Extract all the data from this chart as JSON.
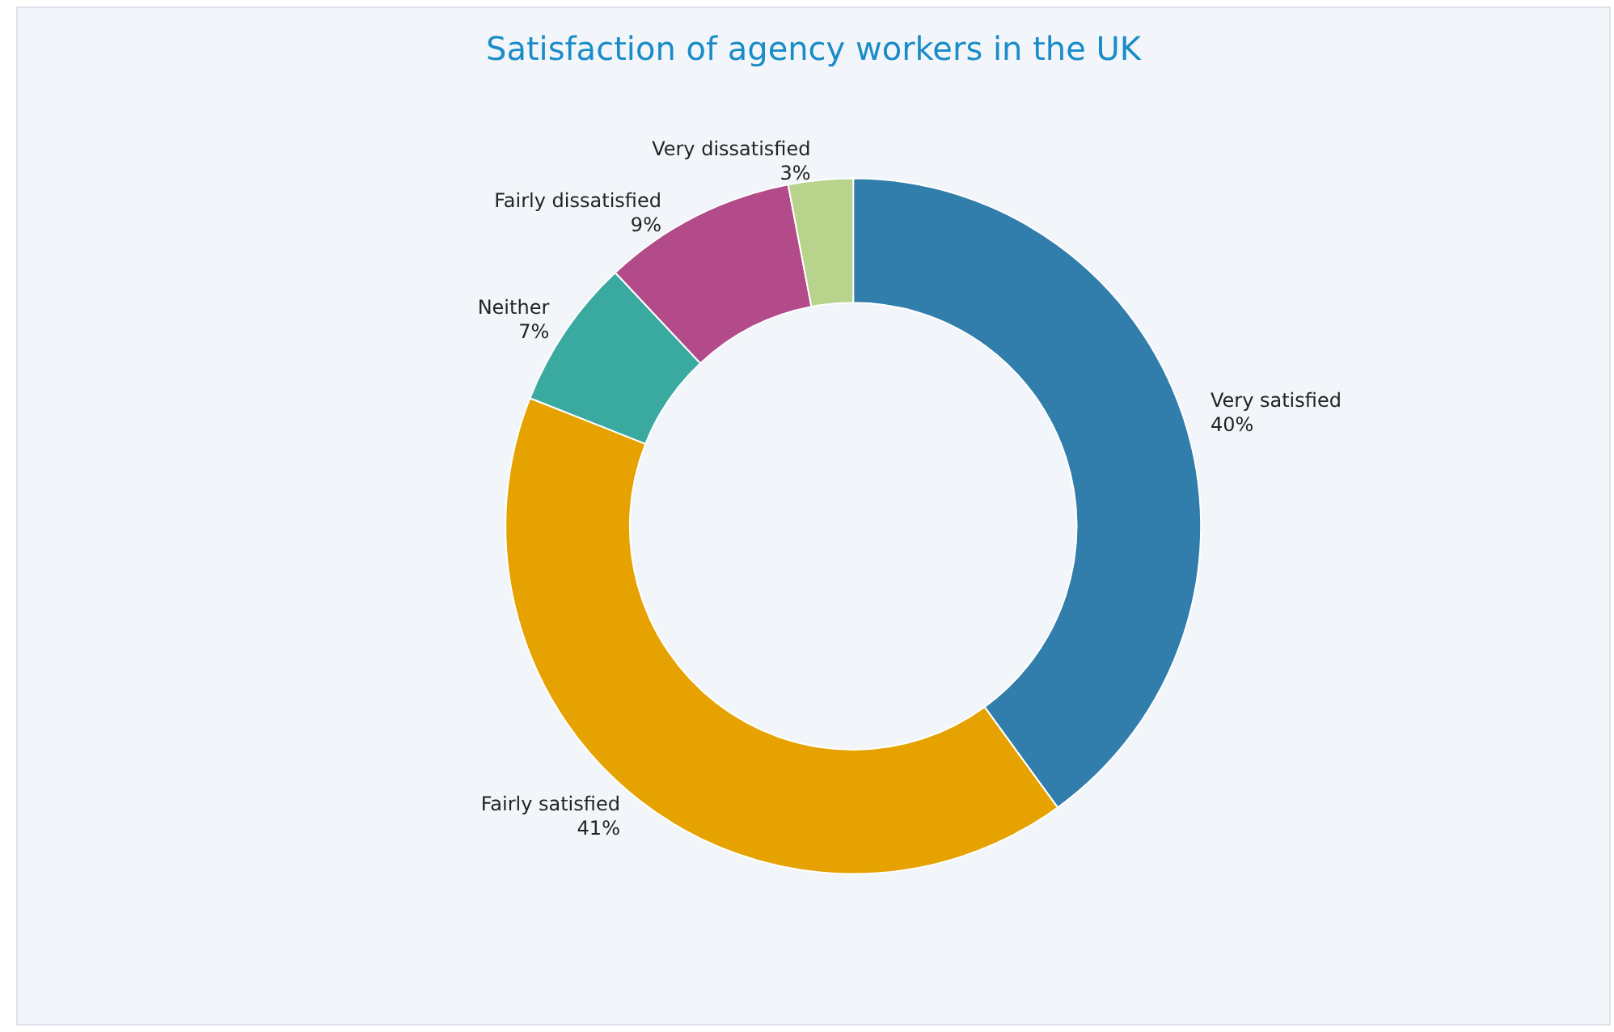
{
  "chart_data": {
    "type": "donut",
    "title": "Satisfaction of agency workers in the UK",
    "categories": [
      "Very satisfied",
      "Fairly satisfied",
      "Neither",
      "Fairly dissatisfied",
      "Very dissatisfied"
    ],
    "values": [
      40,
      41,
      7,
      9,
      3
    ],
    "value_labels": [
      "40%",
      "41%",
      "7%",
      "9%",
      "3%"
    ],
    "colors": [
      "#317dab",
      "#e6a200",
      "#3aaaa0",
      "#b34a8a",
      "#b8d48c"
    ],
    "legend": false
  }
}
